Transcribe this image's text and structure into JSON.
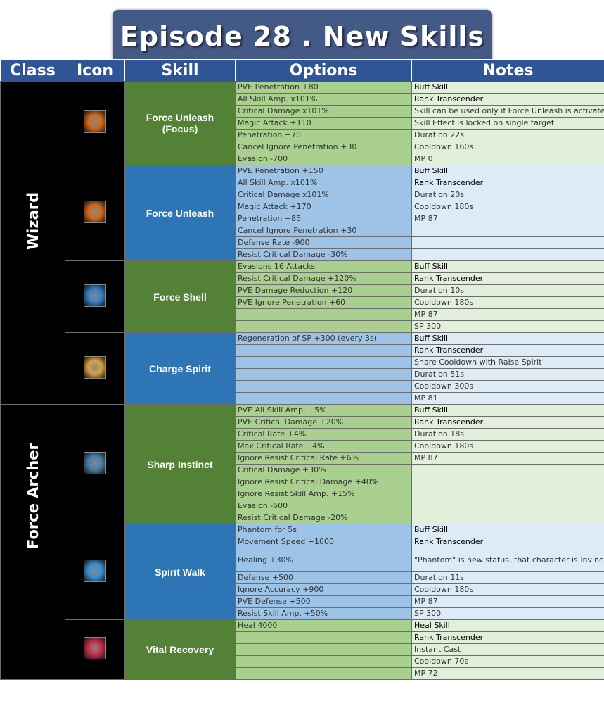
{
  "title": "Episode 28 . New Skills",
  "headers": [
    "Class",
    "Icon",
    "Skill",
    "Options",
    "Notes"
  ],
  "colors": {
    "header": "#2f5597",
    "green_skill": "#538135",
    "blue_skill": "#2e75b6"
  },
  "classes": [
    {
      "name": "Wizard",
      "skills": [
        {
          "name": "Force Unleash (Focus)",
          "icon": "force-unleash-focus-icon",
          "icon_color": "#d2691e",
          "theme": "green",
          "rows": [
            [
              "PVE Penetration +80",
              "Buff Skill"
            ],
            [
              "All Skill Amp. x101%",
              "Rank Transcender"
            ],
            [
              "Critical Damage x101%",
              "Skill can be used only if Force Unleash is activated"
            ],
            [
              "Magic Attack +110",
              "Skill Effect is locked on single target"
            ],
            [
              "Penetration +70",
              "Duration 22s"
            ],
            [
              "Cancel Ignore Penetration +30",
              "Cooldown 160s"
            ],
            [
              "Evasion -700",
              "MP 0"
            ]
          ]
        },
        {
          "name": "Force Unleash",
          "icon": "force-unleash-icon",
          "icon_color": "#d2691e",
          "theme": "blue",
          "rows": [
            [
              "PVE Penetration +150",
              "Buff Skill"
            ],
            [
              "All Skill Amp. x101%",
              "Rank Transcender"
            ],
            [
              "Critical Damage x101%",
              "Duration 20s"
            ],
            [
              "Magic Attack +170",
              "Cooldown 180s"
            ],
            [
              "Penetration +85",
              "MP 87"
            ],
            [
              "Cancel Ignore Penetration +30",
              ""
            ],
            [
              "Defense Rate -900",
              ""
            ],
            [
              "Resist Critical Damage -30%",
              ""
            ]
          ]
        },
        {
          "name": "Force Shell",
          "icon": "force-shell-icon",
          "icon_color": "#3a7fc0",
          "theme": "green",
          "rows": [
            [
              "Evasions 16 Attacks",
              "Buff Skill"
            ],
            [
              "Resist Critical Damage +120%",
              "Rank Transcender"
            ],
            [
              "PVE Damage Reduction +120",
              "Duration 10s"
            ],
            [
              "PVE Ignore Penetration +60",
              "Cooldown 180s"
            ],
            [
              "",
              "MP 87"
            ],
            [
              "",
              "SP 300"
            ]
          ]
        },
        {
          "name": "Charge Spirit",
          "icon": "charge-spirit-icon",
          "icon_color": "#d9a441",
          "theme": "blue",
          "rows": [
            [
              "Regeneration of SP +300 (every 3s)",
              "Buff Skill"
            ],
            [
              "",
              "Rank Transcender"
            ],
            [
              "",
              "Share Cooldown with Raise Spirit"
            ],
            [
              "",
              "Duration 51s"
            ],
            [
              "",
              "Cooldown 300s"
            ],
            [
              "",
              "MP 81"
            ]
          ]
        }
      ]
    },
    {
      "name": "Force Archer",
      "skills": [
        {
          "name": "Sharp Instinct",
          "icon": "sharp-instinct-icon",
          "icon_color": "#4a7fa8",
          "theme": "green",
          "rows": [
            [
              "PVE All Skill Amp. +5%",
              "Buff Skill"
            ],
            [
              "PVE Critical Damage +20%",
              "Rank Transcender"
            ],
            [
              "Critical Rate +4%",
              "Duration 18s"
            ],
            [
              "Max Critical Rate +4%",
              "Cooldown 180s"
            ],
            [
              "Ignore Resist Critical Rate +6%",
              "MP 87"
            ],
            [
              "Critical Damage +30%",
              ""
            ],
            [
              "Ignore Resist Critical Damage +40%",
              ""
            ],
            [
              "Ignore Resist Skill Amp. +15%",
              ""
            ],
            [
              "Evasion -600",
              ""
            ],
            [
              "Resist Critical Damage -20%",
              ""
            ]
          ]
        },
        {
          "name": "Spirit Walk",
          "icon": "spirit-walk-icon",
          "icon_color": "#3b8fd0",
          "theme": "blue",
          "rows": [
            [
              "Phantom for 5s",
              "Buff Skill"
            ],
            [
              "Movement Speed +1000",
              "Rank Transcender"
            ],
            [
              "Healing +30%",
              "\"Phantom\" is new status, that character is Invincible but cannot Attack / Debuff"
            ],
            [
              "Defense +500",
              "Duration 11s"
            ],
            [
              "Ignore Accuracy +900",
              "Cooldown 180s"
            ],
            [
              "PVE Defense +500",
              "MP 87"
            ],
            [
              "Resist Skill Amp. +50%",
              "SP 300"
            ]
          ]
        },
        {
          "name": "Vital Recovery",
          "icon": "vital-recovery-icon",
          "icon_color": "#c0304a",
          "theme": "green",
          "rows": [
            [
              "Heal 4000",
              "Heal Skill"
            ],
            [
              "",
              "Rank Transcender"
            ],
            [
              "",
              "Instant Cast"
            ],
            [
              "",
              "Cooldown 70s"
            ],
            [
              "",
              "MP 72"
            ]
          ]
        }
      ]
    }
  ]
}
